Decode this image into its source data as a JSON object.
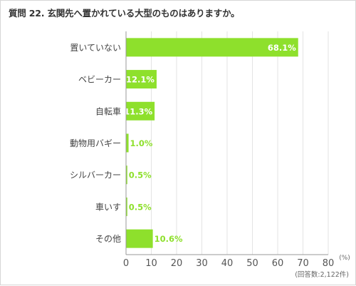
{
  "question": {
    "title": "質問 22. 玄関先へ置かれている大型のものはありますか。"
  },
  "chart_data": {
    "type": "bar",
    "orientation": "horizontal",
    "title": "",
    "categories": [
      "置いていない",
      "ベビーカー",
      "自転車",
      "動物用バギー",
      "シルバーカー",
      "車いす",
      "その他"
    ],
    "values": [
      68.1,
      12.1,
      11.3,
      1.0,
      0.5,
      0.5,
      10.6
    ],
    "value_labels": [
      "68.1%",
      "12.1%",
      "11.3%",
      "1.0%",
      "0.5%",
      "0.5%",
      "10.6%"
    ],
    "xlim": [
      0,
      80
    ],
    "x_ticks": [
      "0",
      "10",
      "20",
      "30",
      "40",
      "50",
      "60",
      "70",
      "80"
    ],
    "x_unit": "(%)",
    "grid": true,
    "legend": "none",
    "bar_color": "#8ee02c"
  },
  "footnote": "(回答数:2,122件)"
}
